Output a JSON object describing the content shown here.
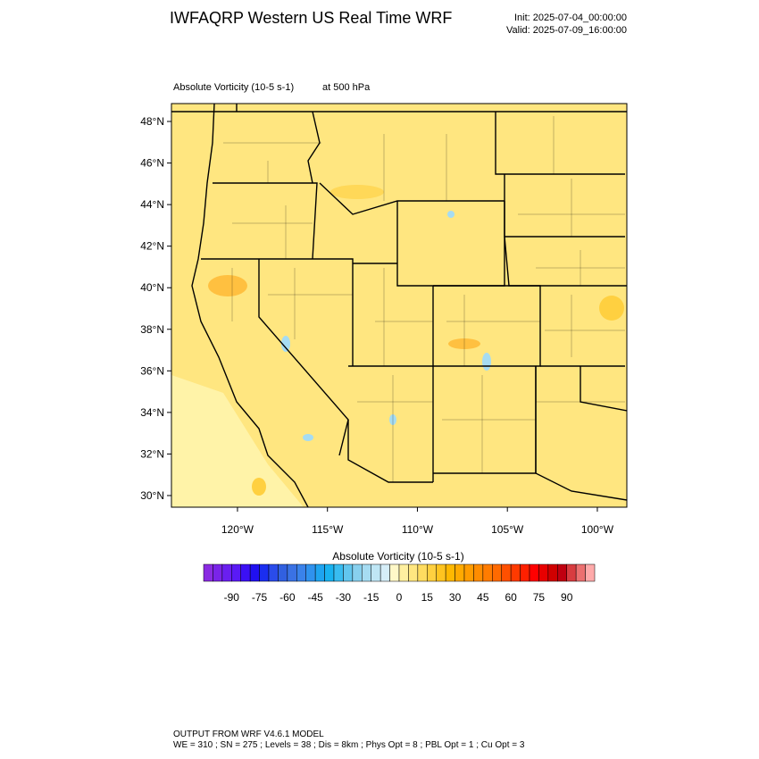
{
  "header": {
    "title": "IWFAQRP Western US Real Time WRF",
    "init": "Init: 2025-07-04_00:00:00",
    "valid": "Valid: 2025-07-09_16:00:00"
  },
  "map": {
    "field": "Absolute Vorticity   (10-5 s-1)",
    "level": "at   500 hPa",
    "lonlim": [
      -123.67,
      -98.36
    ],
    "latlim": [
      29.44,
      48.86
    ],
    "lat_ticks": [
      {
        "value": 48,
        "label": "48°N"
      },
      {
        "value": 46,
        "label": "46°N"
      },
      {
        "value": 44,
        "label": "44°N"
      },
      {
        "value": 42,
        "label": "42°N"
      },
      {
        "value": 40,
        "label": "40°N"
      },
      {
        "value": 38,
        "label": "38°N"
      },
      {
        "value": 36,
        "label": "36°N"
      },
      {
        "value": 34,
        "label": "34°N"
      },
      {
        "value": 32,
        "label": "32°N"
      },
      {
        "value": 30,
        "label": "30°N"
      }
    ],
    "lon_ticks": [
      {
        "value": -120,
        "label": "120°W"
      },
      {
        "value": -115,
        "label": "115°W"
      },
      {
        "value": -110,
        "label": "110°W"
      },
      {
        "value": -105,
        "label": "105°W"
      },
      {
        "value": -100,
        "label": "100°W"
      }
    ]
  },
  "colorbar": {
    "title": "Absolute Vorticity  (10-5 s-1)",
    "lim": [
      -105,
      105
    ],
    "ticks": [
      -90,
      -75,
      -60,
      -45,
      -30,
      -15,
      0,
      15,
      30,
      45,
      60,
      75,
      90
    ],
    "colors": [
      "#8a2be2",
      "#7a24e8",
      "#6a1ff0",
      "#5a1af5",
      "#3b10f5",
      "#2010f0",
      "#1a2ef0",
      "#2a4cea",
      "#3160e0",
      "#3a72e4",
      "#3a82ea",
      "#2f92ee",
      "#1ea4f0",
      "#18b2f0",
      "#38bcf0",
      "#62c6ee",
      "#88d0ee",
      "#a6dcf2",
      "#bfe6f5",
      "#d6eef8",
      "#fff8c8",
      "#fff0a0",
      "#ffe680",
      "#ffdc60",
      "#ffd040",
      "#ffc420",
      "#ffb800",
      "#ffaa00",
      "#ff9c00",
      "#ff8c00",
      "#ff7c00",
      "#ff6a00",
      "#ff5000",
      "#ff3a00",
      "#ff2000",
      "#ff0000",
      "#e80000",
      "#d00000",
      "#c00010",
      "#d83c40",
      "#ec7070",
      "#ffaaaa"
    ]
  },
  "footer": {
    "line1": "OUTPUT FROM WRF V4.6.1 MODEL",
    "line2": "WE = 310 ; SN = 275 ; Levels = 38 ; Dis = 8km ; Phys Opt = 8 ; PBL Opt = 1 ; Cu Opt = 3"
  }
}
